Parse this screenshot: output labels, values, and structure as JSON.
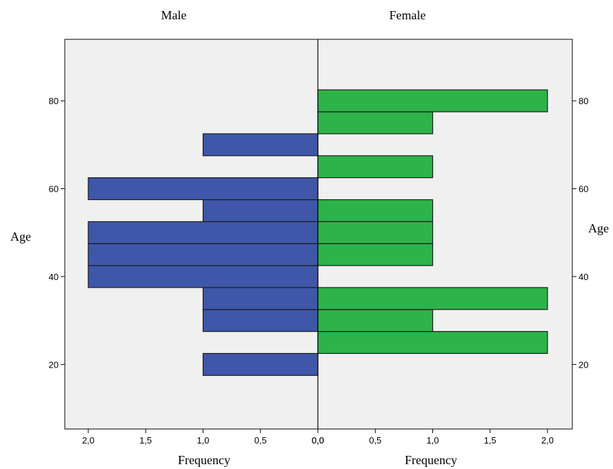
{
  "chart_data": {
    "type": "bar",
    "orientation": "horizontal-population-pyramid",
    "panels": [
      {
        "name": "Male",
        "direction": "left"
      },
      {
        "name": "Female",
        "direction": "right"
      }
    ],
    "ylabel": "Age",
    "xlabel": "Frequency",
    "ylim": [
      6,
      94
    ],
    "xlim": [
      0,
      2.2
    ],
    "yticks": [
      20,
      40,
      60,
      80
    ],
    "ytick_labels": [
      "20",
      "40",
      "60",
      "80"
    ],
    "xticks": [
      0,
      0.5,
      1,
      1.5,
      2
    ],
    "xtick_labels_male": [
      "2,0",
      "1,5",
      "1,0",
      "0,5",
      "0,0"
    ],
    "xtick_labels_female": [
      "0,0",
      "0,5",
      "1,0",
      "1,5",
      "2,0"
    ],
    "bin_width": 5,
    "series": [
      {
        "name": "Male",
        "color": "#3f57a9",
        "bars": [
          {
            "age": 20,
            "frequency": 1
          },
          {
            "age": 30,
            "frequency": 1
          },
          {
            "age": 35,
            "frequency": 1
          },
          {
            "age": 40,
            "frequency": 2
          },
          {
            "age": 45,
            "frequency": 2
          },
          {
            "age": 50,
            "frequency": 2
          },
          {
            "age": 55,
            "frequency": 1
          },
          {
            "age": 60,
            "frequency": 2
          },
          {
            "age": 70,
            "frequency": 1
          }
        ]
      },
      {
        "name": "Female",
        "color": "#2db34a",
        "bars": [
          {
            "age": 25,
            "frequency": 2
          },
          {
            "age": 30,
            "frequency": 1
          },
          {
            "age": 35,
            "frequency": 2
          },
          {
            "age": 45,
            "frequency": 1
          },
          {
            "age": 50,
            "frequency": 1
          },
          {
            "age": 55,
            "frequency": 1
          },
          {
            "age": 65,
            "frequency": 1
          },
          {
            "age": 75,
            "frequency": 1
          },
          {
            "age": 80,
            "frequency": 2
          }
        ]
      }
    ],
    "plot_background": "#f0f0f0",
    "grid": false,
    "legend": "none"
  }
}
